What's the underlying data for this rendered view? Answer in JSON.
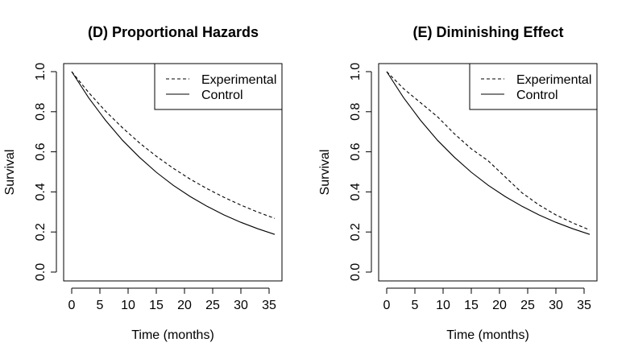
{
  "chart_data": [
    {
      "type": "line",
      "title": "(D) Proportional Hazards",
      "xlabel": "Time (months)",
      "ylabel": "Survival",
      "xlim": [
        0,
        36
      ],
      "ylim": [
        0,
        1
      ],
      "xticks": [
        "0",
        "5",
        "10",
        "15",
        "20",
        "25",
        "30",
        "35"
      ],
      "yticks": [
        "0.0",
        "0.2",
        "0.4",
        "0.6",
        "0.8",
        "1.0"
      ],
      "grid": false,
      "legend_position": "top-right",
      "x": [
        0,
        3,
        6,
        9,
        12,
        15,
        18,
        21,
        24,
        27,
        30,
        33,
        36
      ],
      "series": [
        {
          "name": "Experimental",
          "style": "dashed",
          "values": [
            1.0,
            0.896,
            0.803,
            0.72,
            0.645,
            0.578,
            0.518,
            0.464,
            0.416,
            0.373,
            0.334,
            0.299,
            0.268
          ]
        },
        {
          "name": "Control",
          "style": "solid",
          "values": [
            1.0,
            0.87,
            0.757,
            0.658,
            0.573,
            0.498,
            0.433,
            0.377,
            0.328,
            0.285,
            0.248,
            0.216,
            0.188
          ]
        }
      ]
    },
    {
      "type": "line",
      "title": "(E) Diminishing Effect",
      "xlabel": "Time (months)",
      "ylabel": "Survival",
      "xlim": [
        0,
        36
      ],
      "ylim": [
        0,
        1
      ],
      "xticks": [
        "0",
        "5",
        "10",
        "15",
        "20",
        "25",
        "30",
        "35"
      ],
      "yticks": [
        "0.0",
        "0.2",
        "0.4",
        "0.6",
        "0.8",
        "1.0"
      ],
      "grid": false,
      "legend_position": "top-right",
      "x": [
        0,
        3,
        6,
        9,
        12,
        15,
        18,
        21,
        24,
        27,
        30,
        33,
        36
      ],
      "series": [
        {
          "name": "Experimental",
          "style": "dashed",
          "values": [
            1.0,
            0.915,
            0.845,
            0.775,
            0.69,
            0.615,
            0.555,
            0.475,
            0.395,
            0.335,
            0.285,
            0.245,
            0.21
          ]
        },
        {
          "name": "Control",
          "style": "solid",
          "values": [
            1.0,
            0.87,
            0.757,
            0.658,
            0.573,
            0.498,
            0.433,
            0.377,
            0.328,
            0.285,
            0.248,
            0.216,
            0.188
          ]
        }
      ]
    }
  ]
}
